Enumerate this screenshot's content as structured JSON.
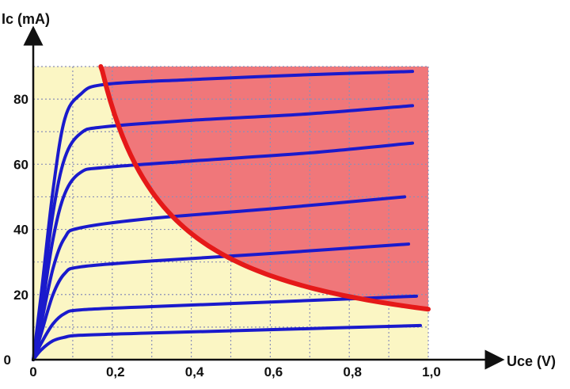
{
  "chart_data": {
    "type": "line",
    "title": "",
    "xlabel": "Uce (V)",
    "ylabel": "Ic (mA)",
    "xlim": [
      0,
      1.0
    ],
    "ylim": [
      0,
      90
    ],
    "x_ticks": [
      {
        "value": 0,
        "label": "0"
      },
      {
        "value": 0.2,
        "label": "0,2"
      },
      {
        "value": 0.4,
        "label": "0,4"
      },
      {
        "value": 0.6,
        "label": "0,6"
      },
      {
        "value": 0.8,
        "label": "0,8"
      },
      {
        "value": 1.0,
        "label": "1,0"
      }
    ],
    "y_ticks": [
      {
        "value": 0,
        "label": "0"
      },
      {
        "value": 20,
        "label": "20"
      },
      {
        "value": 40,
        "label": "40"
      },
      {
        "value": 60,
        "label": "60"
      },
      {
        "value": 80,
        "label": "80"
      }
    ],
    "grid": true,
    "colors": {
      "safe_area": "#fbf6c4",
      "forbidden_area": "#f0777a",
      "curves": "#1a1acc",
      "power_hyperbola": "#e51919",
      "grid": "#8a8fb8"
    },
    "series": [
      {
        "values": [
          [
            0,
            0
          ],
          [
            0.02,
            3
          ],
          [
            0.05,
            5.8
          ],
          [
            0.08,
            6.9
          ],
          [
            0.12,
            7.5
          ],
          [
            0.3,
            8.2
          ],
          [
            0.6,
            9.2
          ],
          [
            0.98,
            10.5
          ]
        ]
      },
      {
        "values": [
          [
            0,
            0
          ],
          [
            0.02,
            5
          ],
          [
            0.05,
            11
          ],
          [
            0.08,
            14.2
          ],
          [
            0.12,
            15.3
          ],
          [
            0.3,
            16.3
          ],
          [
            0.6,
            17.7
          ],
          [
            0.97,
            19.5
          ]
        ]
      },
      {
        "values": [
          [
            0,
            0
          ],
          [
            0.02,
            8
          ],
          [
            0.05,
            20
          ],
          [
            0.08,
            26.5
          ],
          [
            0.12,
            28.5
          ],
          [
            0.3,
            30.3
          ],
          [
            0.6,
            32.6
          ],
          [
            0.95,
            35.5
          ]
        ]
      },
      {
        "values": [
          [
            0,
            0
          ],
          [
            0.02,
            11
          ],
          [
            0.05,
            28
          ],
          [
            0.08,
            37.5
          ],
          [
            0.12,
            40.5
          ],
          [
            0.3,
            43.4
          ],
          [
            0.6,
            46.3
          ],
          [
            0.94,
            50
          ]
        ]
      },
      {
        "values": [
          [
            0,
            0
          ],
          [
            0.02,
            14
          ],
          [
            0.05,
            37
          ],
          [
            0.08,
            51
          ],
          [
            0.12,
            57.5
          ],
          [
            0.18,
            59
          ],
          [
            0.4,
            61
          ],
          [
            0.7,
            63.5
          ],
          [
            0.96,
            66.5
          ]
        ]
      },
      {
        "values": [
          [
            0,
            0
          ],
          [
            0.02,
            17
          ],
          [
            0.05,
            45
          ],
          [
            0.08,
            62
          ],
          [
            0.12,
            69.5
          ],
          [
            0.18,
            71.5
          ],
          [
            0.4,
            73.5
          ],
          [
            0.7,
            75.5
          ],
          [
            0.96,
            78
          ]
        ]
      },
      {
        "values": [
          [
            0,
            0
          ],
          [
            0.02,
            20
          ],
          [
            0.05,
            52
          ],
          [
            0.08,
            74
          ],
          [
            0.12,
            81.5
          ],
          [
            0.18,
            84.5
          ],
          [
            0.4,
            86
          ],
          [
            0.7,
            87.5
          ],
          [
            0.96,
            88.5
          ]
        ]
      }
    ],
    "power_curve": {
      "constant": 15.5,
      "x_start": 0.175,
      "x_end": 1.0
    },
    "forbidden_region": {
      "x_range": [
        0.175,
        1.0
      ],
      "y_max": 90
    }
  }
}
